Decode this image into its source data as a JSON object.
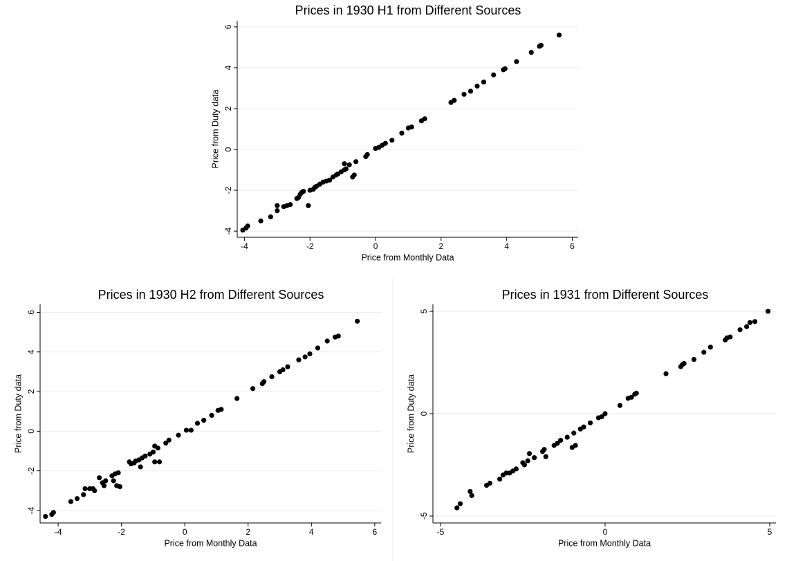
{
  "chart_data": [
    {
      "type": "scatter",
      "title": "Prices in 1930 H1 from Different Sources",
      "x_label": "Price from Monthly Data",
      "y_label": "Price from Duty data",
      "x": [
        -4.05,
        -3.95,
        -3.9,
        -3.5,
        -3.2,
        -3.0,
        -3.0,
        -2.8,
        -2.7,
        -2.6,
        -2.4,
        -2.35,
        -2.3,
        -2.25,
        -2.2,
        -2.05,
        -2.0,
        -1.9,
        -1.85,
        -1.8,
        -1.7,
        -1.6,
        -1.5,
        -1.4,
        -1.3,
        -1.2,
        -1.15,
        -1.05,
        -0.95,
        -0.9,
        -0.95,
        -0.8,
        -0.7,
        -0.65,
        -0.6,
        -0.3,
        -0.25,
        0,
        0.1,
        0.2,
        0.3,
        0.5,
        0.8,
        1.0,
        1.1,
        1.4,
        1.5,
        2.3,
        2.4,
        2.7,
        2.9,
        3.1,
        3.3,
        3.6,
        3.9,
        3.95,
        4.3,
        4.75,
        5.0,
        5.05,
        5.6
      ],
      "values": [
        -3.95,
        -3.85,
        -3.75,
        -3.5,
        -3.3,
        -3.0,
        -2.75,
        -2.8,
        -2.75,
        -2.7,
        -2.4,
        -2.35,
        -2.2,
        -2.1,
        -2.05,
        -2.75,
        -2.0,
        -1.95,
        -1.85,
        -1.8,
        -1.7,
        -1.6,
        -1.55,
        -1.5,
        -1.35,
        -1.25,
        -1.2,
        -1.1,
        -1.0,
        -0.95,
        -0.7,
        -0.75,
        -1.35,
        -1.25,
        -0.6,
        -0.35,
        -0.25,
        0.05,
        0.1,
        0.2,
        0.3,
        0.45,
        0.8,
        1.05,
        1.1,
        1.4,
        1.5,
        2.3,
        2.4,
        2.7,
        2.85,
        3.1,
        3.3,
        3.65,
        3.9,
        3.95,
        4.3,
        4.75,
        5.05,
        5.1,
        5.6
      ],
      "color": "#000000",
      "xlim": [
        -4.22,
        6.18
      ],
      "ylim": [
        -4.3,
        6.3
      ],
      "xticks": [
        -4,
        -2,
        0,
        2,
        4,
        6
      ],
      "yticks": [
        -4,
        -2,
        0,
        2,
        4,
        6
      ],
      "grid": true
    },
    {
      "type": "scatter",
      "title": "Prices in 1930 H2 from Different Sources",
      "x_label": "Price from Monthly Data",
      "y_label": "Price from Duty data",
      "x": [
        -4.4,
        -4.2,
        -4.15,
        -3.6,
        -3.4,
        -3.2,
        -3.15,
        -3.0,
        -2.9,
        -2.85,
        -2.7,
        -2.6,
        -2.55,
        -2.5,
        -2.3,
        -2.25,
        -2.2,
        -2.15,
        -2.1,
        -2.05,
        -1.75,
        -1.7,
        -1.6,
        -1.55,
        -1.45,
        -1.4,
        -1.35,
        -1.25,
        -1.1,
        -1.0,
        -0.95,
        -0.95,
        -0.85,
        -0.8,
        -0.6,
        -0.5,
        -0.2,
        0.05,
        0.2,
        0.4,
        0.6,
        0.85,
        1.05,
        1.15,
        1.65,
        2.15,
        2.45,
        2.5,
        2.75,
        3.0,
        3.1,
        3.25,
        3.6,
        3.8,
        3.95,
        4.2,
        4.5,
        4.75,
        4.85,
        5.45
      ],
      "values": [
        -4.3,
        -4.2,
        -4.1,
        -3.55,
        -3.4,
        -3.2,
        -2.9,
        -2.9,
        -2.9,
        -3.0,
        -2.35,
        -2.6,
        -2.75,
        -2.5,
        -2.25,
        -2.5,
        -2.15,
        -2.75,
        -2.1,
        -2.8,
        -1.55,
        -1.65,
        -1.6,
        -1.5,
        -1.45,
        -1.8,
        -1.35,
        -1.25,
        -1.15,
        -1.05,
        -0.75,
        -1.55,
        -0.85,
        -1.55,
        -0.6,
        -0.45,
        -0.2,
        0.05,
        0.05,
        0.4,
        0.55,
        0.8,
        1.05,
        1.1,
        1.65,
        2.15,
        2.4,
        2.5,
        2.75,
        3.0,
        3.1,
        3.25,
        3.6,
        3.75,
        3.9,
        4.2,
        4.55,
        4.75,
        4.8,
        5.55
      ],
      "color": "#000000",
      "xlim": [
        -4.57,
        6.2
      ],
      "ylim": [
        -4.63,
        6.4
      ],
      "xticks": [
        -4,
        -2,
        0,
        2,
        4,
        6
      ],
      "yticks": [
        -4,
        -2,
        0,
        2,
        4,
        6
      ],
      "grid": true
    },
    {
      "type": "scatter",
      "title": "Prices in 1931 from Different Sources",
      "x_label": "Price from Monthly Data",
      "y_label": "Price from Duty data",
      "x": [
        -4.5,
        -4.4,
        -4.1,
        -4.05,
        -3.6,
        -3.5,
        -3.2,
        -3.1,
        -3.0,
        -2.9,
        -2.8,
        -2.7,
        -2.5,
        -2.45,
        -2.35,
        -2.3,
        -2.15,
        -1.9,
        -1.85,
        -1.8,
        -1.55,
        -1.45,
        -1.35,
        -1.15,
        -0.95,
        -1.0,
        -0.9,
        -0.75,
        -0.65,
        -0.45,
        -0.2,
        -0.1,
        0,
        0.45,
        0.7,
        0.8,
        0.9,
        0.95,
        1.85,
        2.3,
        2.35,
        2.4,
        2.7,
        3.0,
        3.2,
        3.65,
        3.7,
        3.8,
        4.1,
        4.3,
        4.4,
        4.55,
        4.95
      ],
      "values": [
        -4.6,
        -4.4,
        -3.8,
        -4.0,
        -3.5,
        -3.4,
        -3.2,
        -3.0,
        -2.9,
        -2.9,
        -2.8,
        -2.7,
        -2.4,
        -2.5,
        -2.3,
        -1.95,
        -2.15,
        -1.85,
        -1.75,
        -2.1,
        -1.55,
        -1.45,
        -1.3,
        -1.15,
        -0.95,
        -1.65,
        -1.55,
        -0.75,
        -0.65,
        -0.45,
        -0.2,
        -0.15,
        0,
        0.4,
        0.75,
        0.8,
        0.95,
        1.0,
        1.95,
        2.3,
        2.4,
        2.45,
        2.65,
        3.0,
        3.25,
        3.6,
        3.7,
        3.75,
        4.1,
        4.25,
        4.45,
        4.5,
        5.0
      ],
      "color": "#000000",
      "xlim": [
        -5.23,
        5.19
      ],
      "ylim": [
        -5.34,
        5.34
      ],
      "xticks": [
        -5,
        0,
        5
      ],
      "yticks": [
        -5,
        0,
        5
      ],
      "grid": true
    }
  ]
}
